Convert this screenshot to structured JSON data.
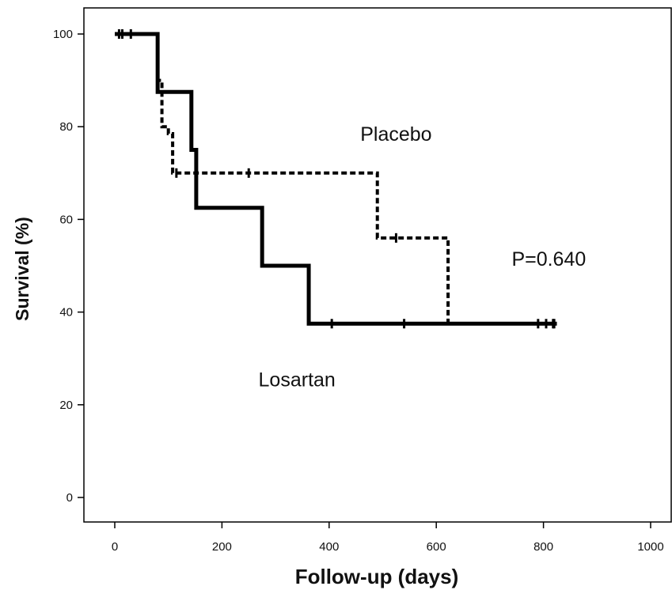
{
  "chart_data": {
    "type": "line",
    "subtype": "kaplan-meier-step",
    "xlabel": "Follow-up (days)",
    "ylabel": "Survival (%)",
    "xlim": [
      0,
      1000
    ],
    "ylim": [
      0,
      100
    ],
    "xticks": [
      0,
      200,
      400,
      600,
      800,
      1000
    ],
    "yticks": [
      0,
      20,
      40,
      60,
      80,
      100
    ],
    "grid": false,
    "series": [
      {
        "name": "Losartan",
        "line_style": "solid",
        "steps": [
          [
            0,
            100
          ],
          [
            80,
            87.5
          ],
          [
            143,
            75
          ],
          [
            152,
            62.5
          ],
          [
            275,
            50
          ],
          [
            362,
            37.5
          ],
          [
            825,
            37.5
          ]
        ],
        "censored": [
          [
            8,
            100
          ],
          [
            14,
            100
          ],
          [
            30,
            100
          ],
          [
            405,
            37.5
          ],
          [
            540,
            37.5
          ],
          [
            818,
            37.5
          ]
        ]
      },
      {
        "name": "Placebo",
        "line_style": "dashed",
        "steps": [
          [
            0,
            100
          ],
          [
            80,
            90
          ],
          [
            88,
            80
          ],
          [
            100,
            78.5
          ],
          [
            108,
            70
          ],
          [
            490,
            70
          ],
          [
            490,
            56
          ],
          [
            622,
            56
          ],
          [
            622,
            37.5
          ],
          [
            825,
            37.5
          ]
        ],
        "censored": [
          [
            115,
            70
          ],
          [
            250,
            70
          ],
          [
            525,
            56
          ],
          [
            790,
            37.5
          ],
          [
            805,
            37.5
          ],
          [
            820,
            37.5
          ]
        ]
      }
    ],
    "annotations": [
      {
        "id": "placebo-label",
        "text": "Placebo",
        "x": 525,
        "y": 77
      },
      {
        "id": "pvalue",
        "text": "P=0.640",
        "x": 810,
        "y": 50
      },
      {
        "id": "losartan-label",
        "text": "Losartan",
        "x": 340,
        "y": 24
      }
    ]
  }
}
